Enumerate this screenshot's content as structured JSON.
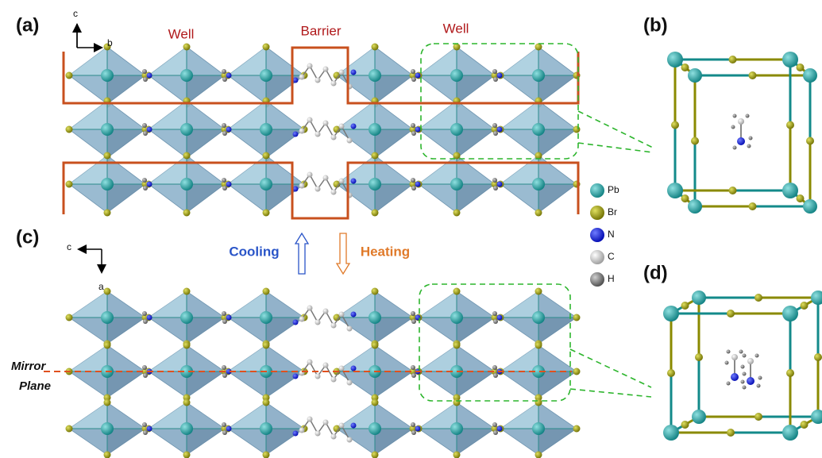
{
  "panel_labels": [
    "(a)",
    "(b)",
    "(c)",
    "(d)"
  ],
  "axes_a": {
    "vertical": "c",
    "horizontal": "b"
  },
  "axes_c": {
    "horizontal": "c",
    "vertical": "a"
  },
  "regions": [
    "Well",
    "Barrier",
    "Well"
  ],
  "transition": {
    "cooling": "Cooling",
    "heating": "Heating"
  },
  "legend": [
    "Pb",
    "Br",
    "N",
    "C",
    "H"
  ],
  "mirror_plane": [
    "Mirror",
    "Plane"
  ]
}
